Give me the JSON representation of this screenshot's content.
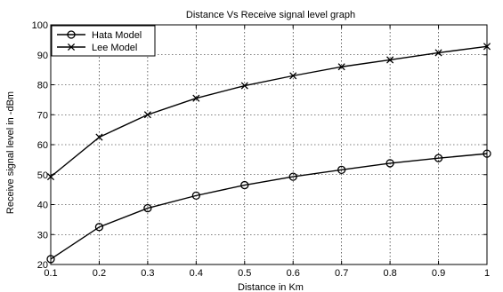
{
  "chart_data": {
    "type": "line",
    "title": "Distance Vs Receive signal level graph",
    "xlabel": "Distance in Km",
    "ylabel": "Receive signal level in -dBm",
    "x": [
      0.1,
      0.2,
      0.3,
      0.4,
      0.5,
      0.6,
      0.7,
      0.8,
      0.9,
      1.0
    ],
    "xlim": [
      0.1,
      1.0
    ],
    "ylim": [
      20,
      100
    ],
    "x_tick_labels": [
      "0.1",
      "0.2",
      "0.3",
      "0.4",
      "0.5",
      "0.6",
      "0.7",
      "0.8",
      "0.9",
      "1"
    ],
    "y_tick_labels": [
      "20",
      "30",
      "40",
      "50",
      "60",
      "70",
      "80",
      "90",
      "100"
    ],
    "y_ticks": [
      20,
      30,
      40,
      50,
      60,
      70,
      80,
      90,
      100
    ],
    "grid": true,
    "legend_position": "top-left",
    "series": [
      {
        "name": "Hata Model",
        "marker": "circle",
        "color": "#000000",
        "values": [
          21.8,
          32.5,
          38.8,
          43.0,
          46.5,
          49.3,
          51.6,
          53.8,
          55.5,
          57.0
        ]
      },
      {
        "name": "Lee Model",
        "marker": "x",
        "color": "#000000",
        "values": [
          49.3,
          62.5,
          70.0,
          75.5,
          79.7,
          83.0,
          86.0,
          88.3,
          90.7,
          92.8
        ]
      }
    ]
  }
}
